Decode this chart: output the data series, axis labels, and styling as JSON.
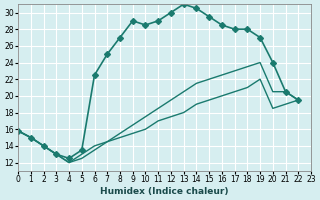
{
  "xlabel": "Humidex (Indice chaleur)",
  "ylabel": "",
  "bg_color": "#d6eef0",
  "grid_color": "#ffffff",
  "line_color": "#1a7a6e",
  "xlim": [
    0,
    23
  ],
  "ylim": [
    11,
    31
  ],
  "xticks": [
    0,
    1,
    2,
    3,
    4,
    5,
    6,
    7,
    8,
    9,
    10,
    11,
    12,
    13,
    14,
    15,
    16,
    17,
    18,
    19,
    20,
    21,
    22,
    23
  ],
  "yticks": [
    12,
    14,
    16,
    18,
    20,
    22,
    24,
    26,
    28,
    30
  ],
  "series": [
    {
      "x": [
        0,
        1,
        2,
        3,
        4,
        5,
        6,
        7,
        8,
        9,
        10,
        11,
        12,
        13,
        14,
        15,
        16,
        17,
        18,
        19,
        20,
        21,
        22
      ],
      "y": [
        15.8,
        15.0,
        14.0,
        13.0,
        12.5,
        13.5,
        22.5,
        25.0,
        27.0,
        29.0,
        28.5,
        29.0,
        30.0,
        31.0,
        30.5,
        29.5,
        28.5,
        28.0,
        28.0,
        27.0,
        24.0,
        20.5,
        19.5
      ],
      "marker": "D",
      "markersize": 3,
      "linewidth": 1.2
    },
    {
      "x": [
        0,
        1,
        2,
        3,
        4,
        5,
        6,
        7,
        8,
        9,
        10,
        11,
        12,
        13,
        14,
        15,
        16,
        17,
        18,
        19,
        20,
        21,
        22
      ],
      "y": [
        15.8,
        15.0,
        14.0,
        13.0,
        12.0,
        13.0,
        14.0,
        14.5,
        15.5,
        16.5,
        17.5,
        18.5,
        19.5,
        20.5,
        21.5,
        22.0,
        22.5,
        23.0,
        23.5,
        24.0,
        20.5,
        20.5,
        19.5
      ],
      "marker": null,
      "markersize": 0,
      "linewidth": 1.0
    },
    {
      "x": [
        0,
        1,
        2,
        3,
        4,
        5,
        6,
        7,
        8,
        9,
        10,
        11,
        12,
        13,
        14,
        15,
        16,
        17,
        18,
        19,
        20,
        21,
        22
      ],
      "y": [
        15.8,
        15.0,
        14.0,
        13.0,
        12.0,
        12.5,
        13.5,
        14.5,
        15.0,
        15.5,
        16.0,
        17.0,
        17.5,
        18.0,
        19.0,
        19.5,
        20.0,
        20.5,
        21.0,
        22.0,
        18.5,
        19.0,
        19.5
      ],
      "marker": null,
      "markersize": 0,
      "linewidth": 1.0
    }
  ]
}
